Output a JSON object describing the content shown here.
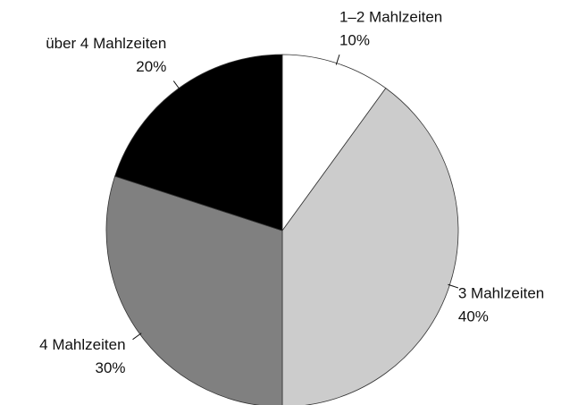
{
  "chart_data": {
    "type": "pie",
    "categories": [
      "1–2 Mahlzeiten",
      "3 Mahlzeiten",
      "4 Mahlzeiten",
      "über 4 Mahlzeiten"
    ],
    "values": [
      10,
      40,
      30,
      20
    ],
    "value_labels": [
      "10%",
      "40%",
      "30%",
      "20%"
    ],
    "colors": [
      "#ffffff",
      "#cccccc",
      "#808080",
      "#000000"
    ]
  }
}
